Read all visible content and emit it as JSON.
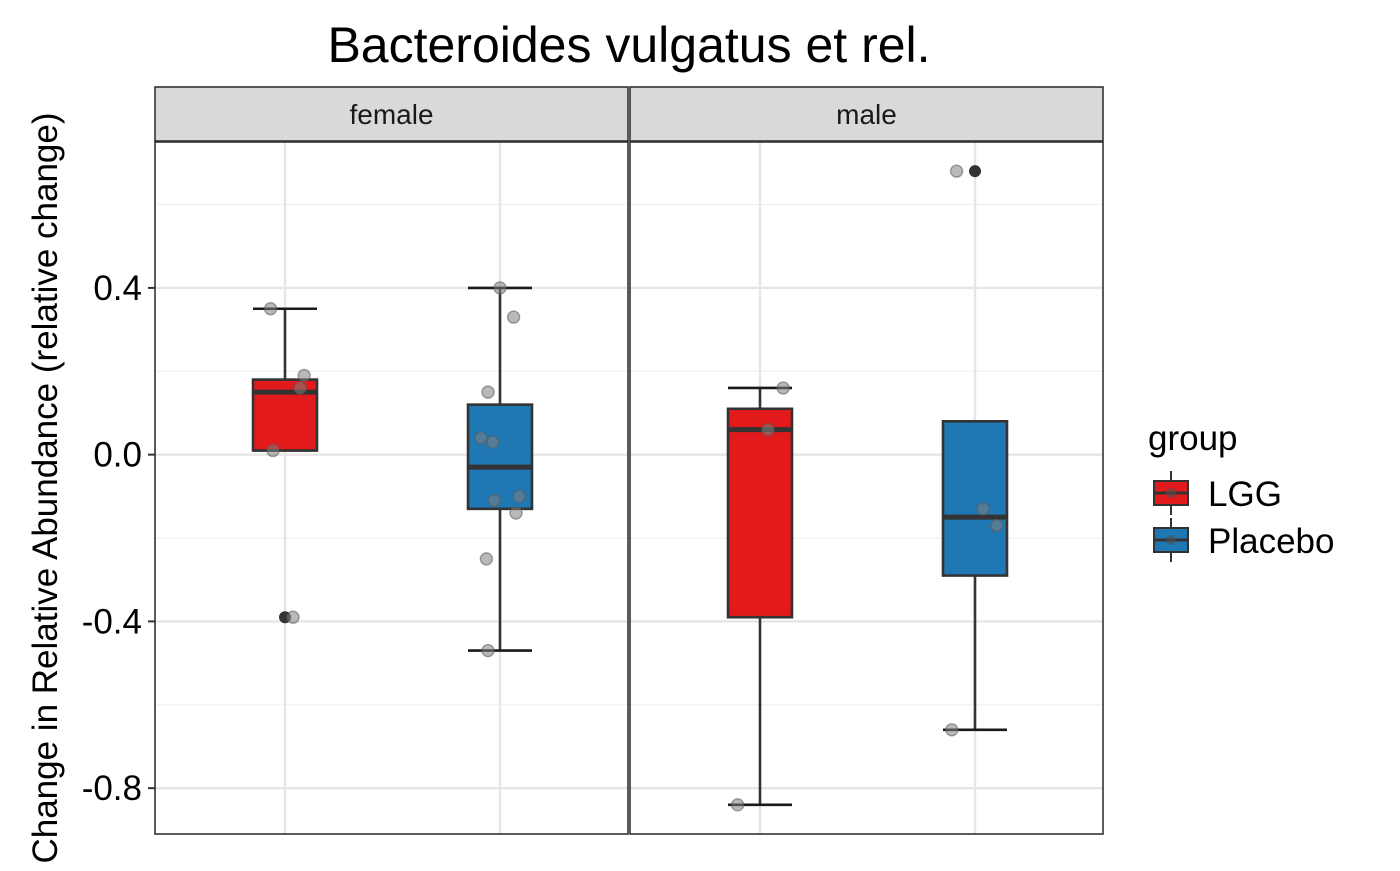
{
  "chart_data": {
    "type": "box",
    "title": "Bacteroides vulgatus et rel.",
    "ylabel": "Change in Relative Abundance (relative change)",
    "xlabel": "",
    "ylim": [
      -0.91,
      0.75
    ],
    "yticks": [
      0.4,
      0.0,
      -0.4,
      -0.8
    ],
    "ytick_labels": [
      "0.4",
      "0.0",
      "-0.4",
      "-0.8"
    ],
    "grid": true,
    "facets": [
      "female",
      "male"
    ],
    "groups": [
      {
        "name": "LGG",
        "color": "#E31A1C"
      },
      {
        "name": "Placebo",
        "color": "#1F78B4"
      }
    ],
    "legend": {
      "title": "group",
      "position": "right"
    },
    "boxes": [
      {
        "facet": "female",
        "group": "LGG",
        "whisker_low": 0.01,
        "q1": 0.01,
        "median": 0.15,
        "q3": 0.18,
        "whisker_high": 0.35,
        "outliers": [
          -0.39
        ]
      },
      {
        "facet": "female",
        "group": "Placebo",
        "whisker_low": -0.47,
        "q1": -0.13,
        "median": -0.03,
        "q3": 0.12,
        "whisker_high": 0.4,
        "outliers": []
      },
      {
        "facet": "male",
        "group": "LGG",
        "whisker_low": -0.84,
        "q1": -0.39,
        "median": 0.06,
        "q3": 0.11,
        "whisker_high": 0.16,
        "outliers": []
      },
      {
        "facet": "male",
        "group": "Placebo",
        "whisker_low": -0.66,
        "q1": -0.29,
        "median": -0.15,
        "q3": 0.08,
        "whisker_high": 0.08,
        "outliers": [
          0.68
        ]
      }
    ],
    "points": [
      {
        "facet": "female",
        "group": "LGG",
        "jitter": -0.18,
        "y": 0.35
      },
      {
        "facet": "female",
        "group": "LGG",
        "jitter": 0.24,
        "y": 0.19
      },
      {
        "facet": "female",
        "group": "LGG",
        "jitter": 0.19,
        "y": 0.16
      },
      {
        "facet": "female",
        "group": "LGG",
        "jitter": -0.15,
        "y": 0.01
      },
      {
        "facet": "female",
        "group": "LGG",
        "jitter": 0.1,
        "y": -0.39
      },
      {
        "facet": "female",
        "group": "Placebo",
        "jitter": 0.0,
        "y": 0.4
      },
      {
        "facet": "female",
        "group": "Placebo",
        "jitter": 0.17,
        "y": 0.33
      },
      {
        "facet": "female",
        "group": "Placebo",
        "jitter": -0.15,
        "y": 0.15
      },
      {
        "facet": "female",
        "group": "Placebo",
        "jitter": -0.24,
        "y": 0.04
      },
      {
        "facet": "female",
        "group": "Placebo",
        "jitter": -0.09,
        "y": 0.03
      },
      {
        "facet": "female",
        "group": "Placebo",
        "jitter": 0.24,
        "y": -0.1
      },
      {
        "facet": "female",
        "group": "Placebo",
        "jitter": -0.07,
        "y": -0.11
      },
      {
        "facet": "female",
        "group": "Placebo",
        "jitter": 0.2,
        "y": -0.14
      },
      {
        "facet": "female",
        "group": "Placebo",
        "jitter": -0.17,
        "y": -0.25
      },
      {
        "facet": "female",
        "group": "Placebo",
        "jitter": -0.15,
        "y": -0.47
      },
      {
        "facet": "male",
        "group": "LGG",
        "jitter": 0.29,
        "y": 0.16
      },
      {
        "facet": "male",
        "group": "LGG",
        "jitter": 0.1,
        "y": 0.06
      },
      {
        "facet": "male",
        "group": "LGG",
        "jitter": -0.28,
        "y": -0.84
      },
      {
        "facet": "male",
        "group": "Placebo",
        "jitter": -0.23,
        "y": 0.68
      },
      {
        "facet": "male",
        "group": "Placebo",
        "jitter": 0.1,
        "y": -0.13
      },
      {
        "facet": "male",
        "group": "Placebo",
        "jitter": 0.27,
        "y": -0.17
      },
      {
        "facet": "male",
        "group": "Placebo",
        "jitter": -0.29,
        "y": -0.66
      }
    ]
  }
}
